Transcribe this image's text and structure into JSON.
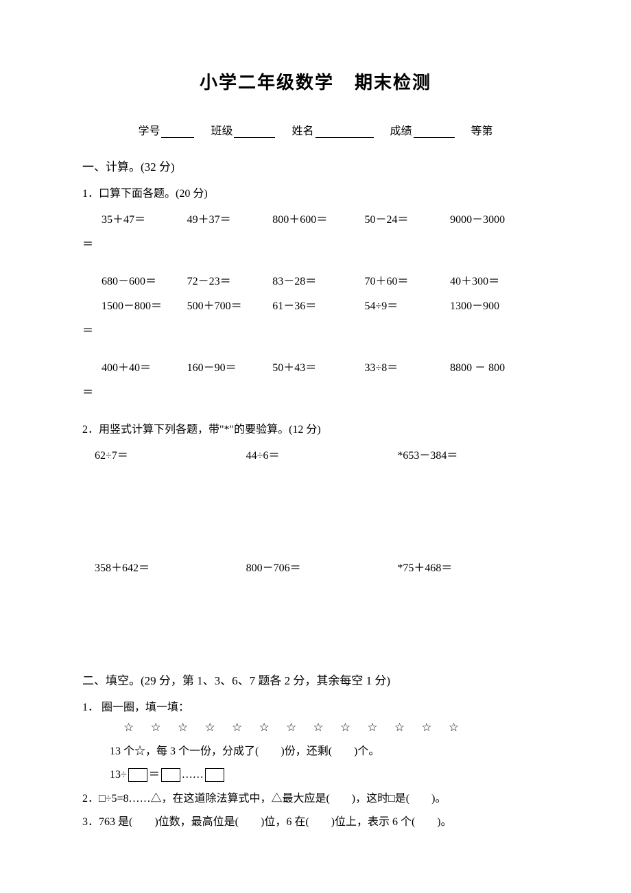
{
  "title_part1": "小学二年级数学",
  "title_part2": "期末检测",
  "header": {
    "student_id": "学号",
    "class": "班级",
    "name": "姓名",
    "score": "成绩",
    "grade": "等第"
  },
  "section1": {
    "heading": "一、计算。(32 分)",
    "q1": {
      "heading": "1．口算下面各题。(20 分)",
      "row1": [
        "35＋47＝",
        "49＋37＝",
        "800＋600＝",
        "50－24＝",
        "9000－3000"
      ],
      "row2": [
        "680－600＝",
        "72－23＝",
        "83－28＝",
        "70＋60＝",
        "40＋300＝"
      ],
      "row3": [
        "1500－800＝",
        "500＋700＝",
        "61－36＝",
        "54÷9＝",
        "1300－900"
      ],
      "row4": [
        "400＋40＝",
        "160－90＝",
        "50＋43＝",
        "33÷8＝",
        "8800 － 800"
      ],
      "eq": "＝"
    },
    "q2": {
      "heading": "2．用竖式计算下列各题，带\"*\"的要验算。(12 分)",
      "row1": [
        "62÷7＝",
        "44÷6＝",
        "*653－384＝"
      ],
      "row2": [
        "358＋642＝",
        "800－706＝",
        "*75＋468＝"
      ]
    }
  },
  "section2": {
    "heading": "二、填空。(29 分，第 1、3、6、7 题各 2 分，其余每空 1 分)",
    "q1": {
      "heading": "1． 圈一圈，填一填：",
      "stars": "☆ ☆ ☆ ☆ ☆ ☆ ☆ ☆ ☆ ☆ ☆ ☆ ☆",
      "line1_a": "13 个☆，每 3 个一份，分成了(",
      "line1_b": ")份，还剩(",
      "line1_c": ")个。",
      "line2_a": "13÷",
      "line2_b": "＝",
      "line2_c": "……"
    },
    "q2": "2．□÷5=8……△，在这道除法算式中，△最大应是(　　)，这时□是(　　)。",
    "q3": "3．763 是(　　)位数，最高位是(　　)位，6 在(　　)位上，表示 6 个(　　)。"
  },
  "colors": {
    "text_color": "#000000",
    "background_color": "#ffffff",
    "border_color": "#000000"
  },
  "typography": {
    "title_fontsize": 26,
    "body_fontsize": 16,
    "font_family": "SimSun"
  }
}
